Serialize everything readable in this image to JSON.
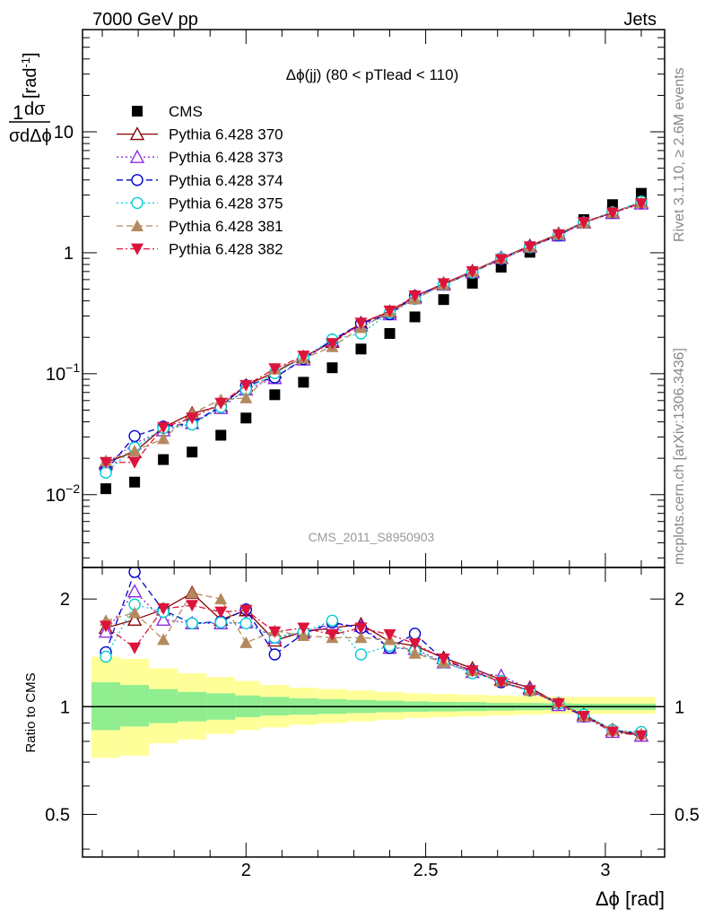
{
  "header": {
    "left": "7000 GeV pp",
    "right": "Jets",
    "side_top": "Rivet 3.1.10, ≥ 2.6M events",
    "side_bottom": "mcplots.cern.ch [arXiv:1306.3436]",
    "watermark": "CMS_2011_S8950903"
  },
  "chart_data": [
    {
      "type": "scatter",
      "title": "Δϕ(jj) (80 < pTlead <  110)",
      "ylabel": "1/σ dσ/dΔϕ [rad⁻¹]",
      "xlabel": "Δϕ [rad]",
      "yscale": "log",
      "ylim": [
        0.0025,
        70
      ],
      "xlim": [
        1.545,
        3.165
      ],
      "x_ticks": [
        "2",
        "2.5",
        "3"
      ],
      "y_tick_labels": [
        "10⁻²",
        "10⁻¹",
        "1",
        "10"
      ],
      "legend_position": "top-left",
      "x": [
        1.61,
        1.69,
        1.77,
        1.85,
        1.93,
        2.0,
        2.08,
        2.16,
        2.24,
        2.32,
        2.4,
        2.47,
        2.55,
        2.63,
        2.71,
        2.79,
        2.87,
        2.94,
        3.02,
        3.1
      ],
      "series": [
        {
          "name": "CMS",
          "color": "#000000",
          "marker": "square",
          "line": "none",
          "values": [
            0.0112,
            0.0127,
            0.0195,
            0.0225,
            0.031,
            0.043,
            0.067,
            0.085,
            0.112,
            0.16,
            0.215,
            0.295,
            0.41,
            0.56,
            0.76,
            1.01,
            1.38,
            1.88,
            2.5,
            3.1
          ]
        },
        {
          "name": "Pythia 6.428 370",
          "color": "#8b0000",
          "marker": "triangle-open",
          "line": "solid",
          "values": [
            0.0185,
            0.0225,
            0.036,
            0.047,
            0.054,
            0.08,
            0.103,
            0.137,
            0.183,
            0.262,
            0.325,
            0.435,
            0.555,
            0.705,
            0.905,
            1.14,
            1.43,
            1.79,
            2.16,
            2.6
          ]
        },
        {
          "name": "Pythia 6.428 373",
          "color": "#8a2be2",
          "marker": "triangle-open",
          "line": "dotted",
          "values": [
            0.018,
            0.0265,
            0.034,
            0.039,
            0.052,
            0.074,
            0.092,
            0.131,
            0.188,
            0.25,
            0.31,
            0.425,
            0.545,
            0.69,
            0.91,
            1.12,
            1.39,
            1.77,
            2.13,
            2.55
          ]
        },
        {
          "name": "Pythia 6.428 374",
          "color": "#0000cd",
          "marker": "circle-open",
          "line": "dashed",
          "values": [
            0.0158,
            0.0305,
            0.0365,
            0.039,
            0.054,
            0.08,
            0.093,
            0.132,
            0.19,
            0.26,
            0.31,
            0.44,
            0.545,
            0.69,
            0.885,
            1.12,
            1.39,
            1.78,
            2.14,
            2.6
          ]
        },
        {
          "name": "Pythia 6.428 375",
          "color": "#00ced1",
          "marker": "circle-open",
          "line": "dotted",
          "values": [
            0.0152,
            0.0245,
            0.0355,
            0.038,
            0.053,
            0.074,
            0.101,
            0.136,
            0.192,
            0.215,
            0.32,
            0.415,
            0.545,
            0.685,
            0.9,
            1.11,
            1.41,
            1.78,
            2.16,
            2.65
          ]
        },
        {
          "name": "Pythia 6.428 381",
          "color": "#b5895e",
          "marker": "triangle-filled",
          "line": "dashed",
          "values": [
            0.019,
            0.023,
            0.029,
            0.047,
            0.061,
            0.063,
            0.109,
            0.134,
            0.167,
            0.24,
            0.325,
            0.415,
            0.545,
            0.7,
            0.9,
            1.12,
            1.43,
            1.76,
            2.15,
            2.6
          ]
        },
        {
          "name": "Pythia 6.428 382",
          "color": "#dc143c",
          "marker": "triangle-down-filled",
          "line": "dashdot",
          "values": [
            0.0185,
            0.0185,
            0.036,
            0.043,
            0.057,
            0.08,
            0.11,
            0.14,
            0.178,
            0.262,
            0.33,
            0.44,
            0.555,
            0.7,
            0.88,
            1.12,
            1.41,
            1.78,
            2.14,
            2.55
          ]
        }
      ]
    },
    {
      "type": "scatter",
      "ylabel": "Ratio to CMS",
      "yscale": "log",
      "ylim": [
        0.38,
        2.45
      ],
      "y_tick_labels": [
        "0.5",
        "1",
        "2"
      ],
      "bands": {
        "x_edges": [
          1.57,
          1.65,
          1.73,
          1.81,
          1.89,
          1.97,
          2.04,
          2.12,
          2.2,
          2.28,
          2.36,
          2.44,
          2.51,
          2.59,
          2.67,
          2.75,
          2.83,
          2.91,
          2.98,
          3.06,
          3.14
        ],
        "green": {
          "color": "#90ee90",
          "lo": [
            0.86,
            0.88,
            0.9,
            0.91,
            0.92,
            0.935,
            0.945,
            0.95,
            0.955,
            0.96,
            0.965,
            0.968,
            0.97,
            0.972,
            0.975,
            0.978,
            0.98,
            0.98,
            0.98,
            0.98
          ],
          "hi": [
            1.17,
            1.15,
            1.12,
            1.1,
            1.09,
            1.075,
            1.065,
            1.055,
            1.05,
            1.045,
            1.04,
            1.035,
            1.032,
            1.03,
            1.025,
            1.024,
            1.022,
            1.02,
            1.02,
            1.02
          ]
        },
        "yellow": {
          "color": "#ffff99",
          "lo": [
            0.72,
            0.73,
            0.79,
            0.81,
            0.84,
            0.86,
            0.875,
            0.89,
            0.9,
            0.91,
            0.92,
            0.93,
            0.935,
            0.94,
            0.945,
            0.95,
            0.955,
            0.955,
            0.955,
            0.955
          ],
          "hi": [
            1.38,
            1.36,
            1.28,
            1.24,
            1.21,
            1.18,
            1.15,
            1.13,
            1.12,
            1.11,
            1.1,
            1.09,
            1.085,
            1.08,
            1.075,
            1.07,
            1.065,
            1.065,
            1.065,
            1.065
          ]
        }
      },
      "reference_line": 1,
      "series": [
        {
          "name": "Pythia 6.428 370",
          "values": [
            1.66,
            1.75,
            1.87,
            2.08,
            1.75,
            1.86,
            1.53,
            1.62,
            1.66,
            1.7,
            1.52,
            1.48,
            1.37,
            1.28,
            1.19,
            1.13,
            1.02,
            0.95,
            0.86,
            0.83
          ]
        },
        {
          "name": "Pythia 6.428 373",
          "values": [
            1.62,
            2.1,
            1.75,
            1.71,
            1.71,
            1.72,
            1.56,
            1.61,
            1.7,
            1.68,
            1.46,
            1.45,
            1.33,
            1.25,
            1.22,
            1.12,
            1.01,
            0.94,
            0.85,
            0.83
          ]
        },
        {
          "name": "Pythia 6.428 374",
          "values": [
            1.42,
            2.38,
            1.86,
            1.71,
            1.73,
            1.87,
            1.4,
            1.6,
            1.72,
            1.66,
            1.46,
            1.6,
            1.35,
            1.26,
            1.17,
            1.11,
            1.02,
            0.94,
            0.86,
            0.84
          ]
        },
        {
          "name": "Pythia 6.428 375",
          "values": [
            1.38,
            1.93,
            1.84,
            1.71,
            1.72,
            1.71,
            1.56,
            1.62,
            1.74,
            1.4,
            1.48,
            1.43,
            1.33,
            1.24,
            1.18,
            1.11,
            1.02,
            0.95,
            0.86,
            0.85
          ]
        },
        {
          "name": "Pythia 6.428 381",
          "values": [
            1.74,
            1.83,
            1.54,
            2.08,
            2.0,
            1.51,
            1.63,
            1.58,
            1.56,
            1.56,
            1.54,
            1.41,
            1.33,
            1.26,
            1.18,
            1.11,
            1.03,
            0.94,
            0.86,
            0.84
          ]
        },
        {
          "name": "Pythia 6.428 382",
          "values": [
            1.68,
            1.46,
            1.88,
            1.92,
            1.84,
            1.86,
            1.62,
            1.66,
            1.59,
            1.66,
            1.59,
            1.5,
            1.36,
            1.26,
            1.17,
            1.11,
            1.02,
            0.94,
            0.85,
            0.83
          ]
        }
      ]
    }
  ]
}
